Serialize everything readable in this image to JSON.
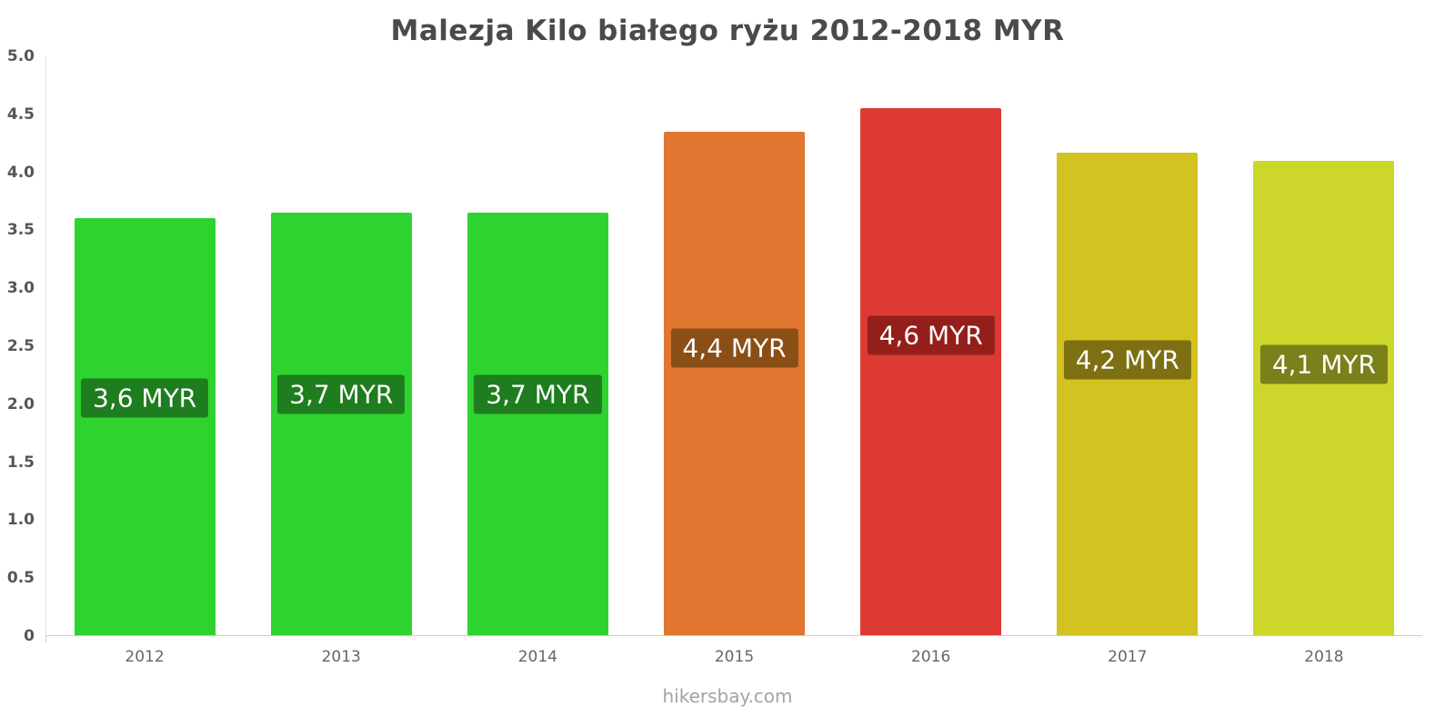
{
  "chart_data": {
    "type": "bar",
    "title": "Malezja Kilo białego ryżu 2012-2018 MYR",
    "footer": "hikersbay.com",
    "categories": [
      "2012",
      "2013",
      "2014",
      "2015",
      "2016",
      "2017",
      "2018"
    ],
    "values": [
      3.6,
      3.65,
      3.65,
      4.35,
      4.55,
      4.17,
      4.1
    ],
    "bar_labels": [
      "3,6 MYR",
      "3,7 MYR",
      "3,7 MYR",
      "4,4 MYR",
      "4,6 MYR",
      "4,2 MYR",
      "4,1 MYR"
    ],
    "bar_colors": [
      "#2fd32f",
      "#2fd32f",
      "#2fd32f",
      "#e0762f",
      "#dd3a33",
      "#d3c21f",
      "#cdd62b"
    ],
    "label_bg_colors": [
      "#1e7d1e",
      "#1e7d1e",
      "#1e7d1e",
      "#8a4f17",
      "#941f1a",
      "#7d7012",
      "#7a801a"
    ],
    "xlabel": "",
    "ylabel": "",
    "ylim": [
      0,
      5
    ],
    "ytick_values": [
      0,
      0.5,
      1,
      1.5,
      2,
      2.5,
      3,
      3.5,
      4,
      4.5,
      5
    ],
    "ytick_labels": [
      "0",
      "0.5",
      "1.0",
      "1.5",
      "2.0",
      "2.5",
      "3.0",
      "3.5",
      "4.0",
      "4.5",
      "5.0"
    ],
    "legend": "none",
    "grid": "off"
  }
}
